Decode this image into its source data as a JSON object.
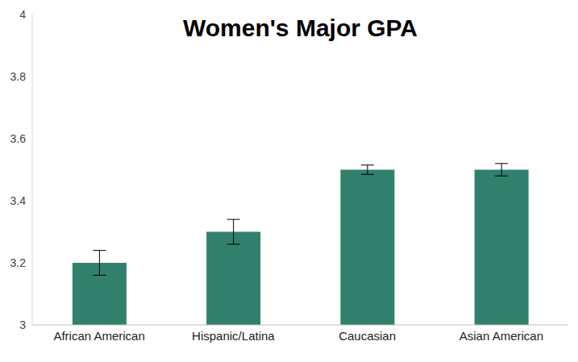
{
  "chart_data": {
    "type": "bar",
    "title": "Women's Major GPA",
    "categories": [
      "African American",
      "Hispanic/Latina",
      "Caucasian",
      "Asian American"
    ],
    "values": [
      3.2,
      3.3,
      3.5,
      3.5
    ],
    "errors": [
      0.04,
      0.04,
      0.015,
      0.02
    ],
    "color": "#31806c",
    "ylim": [
      3,
      4
    ],
    "yticks": [
      3,
      3.2,
      3.4,
      3.6,
      3.8,
      4
    ],
    "grid": false
  }
}
